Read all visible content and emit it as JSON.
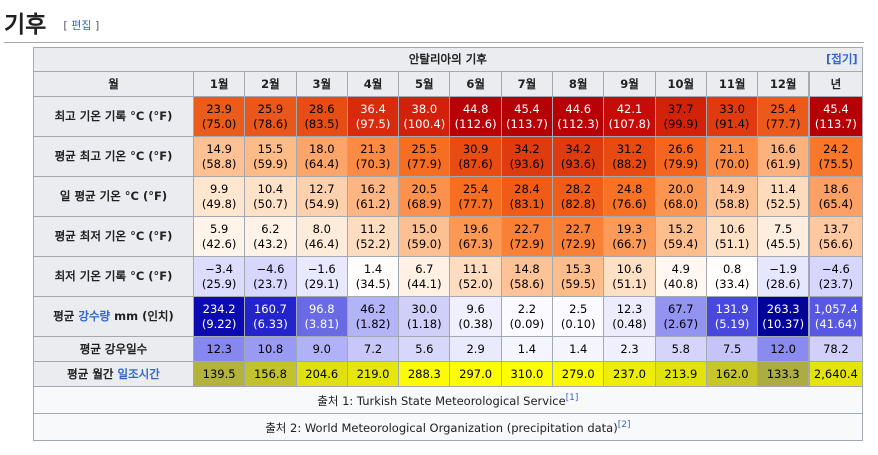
{
  "section": {
    "title": "기후",
    "edit_open": "[ ",
    "edit_label": "편집",
    "edit_close": " ]"
  },
  "table": {
    "caption": "안탈리아의 기후",
    "collapse_label": "[접기]",
    "header": {
      "label": "월",
      "months": [
        "1월",
        "2월",
        "3월",
        "4월",
        "5월",
        "6월",
        "7월",
        "8월",
        "9월",
        "10월",
        "11월",
        "12월"
      ],
      "year": "년"
    },
    "rows": [
      {
        "label": "최고 기온 기록 °C (°F)",
        "cells": [
          {
            "v": "23.9",
            "f": "(75.0)",
            "bg": "#e95c1b",
            "fg": "#000000"
          },
          {
            "v": "25.9",
            "f": "(78.6)",
            "bg": "#ea571a",
            "fg": "#000000"
          },
          {
            "v": "28.6",
            "f": "(83.5)",
            "bg": "#e64e15",
            "fg": "#000000"
          },
          {
            "v": "36.4",
            "f": "(97.5)",
            "bg": "#d82a0c",
            "fg": "#ffffff"
          },
          {
            "v": "38.0",
            "f": "(100.4)",
            "bg": "#d2200a",
            "fg": "#ffffff"
          },
          {
            "v": "44.8",
            "f": "(112.6)",
            "bg": "#b80006",
            "fg": "#ffffff"
          },
          {
            "v": "45.4",
            "f": "(113.7)",
            "bg": "#b50006",
            "fg": "#ffffff"
          },
          {
            "v": "44.6",
            "f": "(112.3)",
            "bg": "#b90006",
            "fg": "#ffffff"
          },
          {
            "v": "42.1",
            "f": "(107.8)",
            "bg": "#c70b08",
            "fg": "#ffffff"
          },
          {
            "v": "37.7",
            "f": "(99.9)",
            "bg": "#d3220a",
            "fg": "#000000"
          },
          {
            "v": "33.0",
            "f": "(91.4)",
            "bg": "#e03a10",
            "fg": "#000000"
          },
          {
            "v": "25.4",
            "f": "(77.7)",
            "bg": "#eb5a1b",
            "fg": "#000000"
          },
          {
            "v": "45.4",
            "f": "(113.7)",
            "bg": "#b50006",
            "fg": "#ffffff"
          }
        ]
      },
      {
        "label": "평균 최고 기온 °C (°F)",
        "cells": [
          {
            "v": "14.9",
            "f": "(58.8)",
            "bg": "#fdc193",
            "fg": "#000000"
          },
          {
            "v": "15.5",
            "f": "(59.9)",
            "bg": "#fdbb88",
            "fg": "#000000"
          },
          {
            "v": "18.0",
            "f": "(64.4)",
            "bg": "#fca56a",
            "fg": "#000000"
          },
          {
            "v": "21.3",
            "f": "(70.3)",
            "bg": "#fb8a44",
            "fg": "#000000"
          },
          {
            "v": "25.5",
            "f": "(77.9)",
            "bg": "#f66e21",
            "fg": "#000000"
          },
          {
            "v": "30.9",
            "f": "(87.6)",
            "bg": "#e84c12",
            "fg": "#000000"
          },
          {
            "v": "34.2",
            "f": "(93.6)",
            "bg": "#de3b0e",
            "fg": "#000000"
          },
          {
            "v": "34.2",
            "f": "(93.6)",
            "bg": "#de3b0e",
            "fg": "#000000"
          },
          {
            "v": "31.2",
            "f": "(88.2)",
            "bg": "#e74b12",
            "fg": "#000000"
          },
          {
            "v": "26.6",
            "f": "(79.9)",
            "bg": "#f4661d",
            "fg": "#000000"
          },
          {
            "v": "21.1",
            "f": "(70.0)",
            "bg": "#fb8c46",
            "fg": "#000000"
          },
          {
            "v": "16.6",
            "f": "(61.9)",
            "bg": "#fdb27d",
            "fg": "#000000"
          },
          {
            "v": "24.2",
            "f": "(75.5)",
            "bg": "#f8772a",
            "fg": "#000000"
          }
        ]
      },
      {
        "label": "일 평균 기온 °C (°F)",
        "cells": [
          {
            "v": "9.9",
            "f": "(49.8)",
            "bg": "#fee6cf",
            "fg": "#000000"
          },
          {
            "v": "10.4",
            "f": "(50.7)",
            "bg": "#fee2c8",
            "fg": "#000000"
          },
          {
            "v": "12.7",
            "f": "(54.9)",
            "bg": "#fed1ae",
            "fg": "#000000"
          },
          {
            "v": "16.2",
            "f": "(61.2)",
            "bg": "#fdb583",
            "fg": "#000000"
          },
          {
            "v": "20.5",
            "f": "(68.9)",
            "bg": "#fb914c",
            "fg": "#000000"
          },
          {
            "v": "25.4",
            "f": "(77.7)",
            "bg": "#f66e21",
            "fg": "#000000"
          },
          {
            "v": "28.4",
            "f": "(83.1)",
            "bg": "#ef5c18",
            "fg": "#000000"
          },
          {
            "v": "28.2",
            "f": "(82.8)",
            "bg": "#ef5d18",
            "fg": "#000000"
          },
          {
            "v": "24.8",
            "f": "(76.6)",
            "bg": "#f77225",
            "fg": "#000000"
          },
          {
            "v": "20.0",
            "f": "(68.0)",
            "bg": "#fb9551",
            "fg": "#000000"
          },
          {
            "v": "14.9",
            "f": "(58.8)",
            "bg": "#fdc193",
            "fg": "#000000"
          },
          {
            "v": "11.4",
            "f": "(52.5)",
            "bg": "#fedbbd",
            "fg": "#000000"
          },
          {
            "v": "18.6",
            "f": "(65.4)",
            "bg": "#fca066",
            "fg": "#000000"
          }
        ]
      },
      {
        "label": "평균 최저 기온 °C (°F)",
        "cells": [
          {
            "v": "5.9",
            "f": "(42.6)",
            "bg": "#fff4ea",
            "fg": "#000000"
          },
          {
            "v": "6.2",
            "f": "(43.2)",
            "bg": "#fff3e8",
            "fg": "#000000"
          },
          {
            "v": "8.0",
            "f": "(46.4)",
            "bg": "#feecdb",
            "fg": "#000000"
          },
          {
            "v": "11.2",
            "f": "(52.2)",
            "bg": "#fedcbf",
            "fg": "#000000"
          },
          {
            "v": "15.0",
            "f": "(59.0)",
            "bg": "#fdc092",
            "fg": "#000000"
          },
          {
            "v": "19.6",
            "f": "(67.3)",
            "bg": "#fb9854",
            "fg": "#000000"
          },
          {
            "v": "22.7",
            "f": "(72.9)",
            "bg": "#f98037",
            "fg": "#000000"
          },
          {
            "v": "22.7",
            "f": "(72.9)",
            "bg": "#f98037",
            "fg": "#000000"
          },
          {
            "v": "19.3",
            "f": "(66.7)",
            "bg": "#fc9b59",
            "fg": "#000000"
          },
          {
            "v": "15.2",
            "f": "(59.4)",
            "bg": "#fdbe8e",
            "fg": "#000000"
          },
          {
            "v": "10.6",
            "f": "(51.1)",
            "bg": "#fee0c5",
            "fg": "#000000"
          },
          {
            "v": "7.5",
            "f": "(45.5)",
            "bg": "#feeedf",
            "fg": "#000000"
          },
          {
            "v": "13.7",
            "f": "(56.6)",
            "bg": "#fec9a1",
            "fg": "#000000"
          }
        ]
      },
      {
        "label": "최저 기온 기록 °C (°F)",
        "cells": [
          {
            "v": "−3.4",
            "f": "(25.9)",
            "bg": "#dcdcff",
            "fg": "#000000"
          },
          {
            "v": "−4.6",
            "f": "(23.7)",
            "bg": "#d6d6ff",
            "fg": "#000000"
          },
          {
            "v": "−1.6",
            "f": "(29.1)",
            "bg": "#e8e8ff",
            "fg": "#000000"
          },
          {
            "v": "1.4",
            "f": "(34.5)",
            "bg": "#fffdfb",
            "fg": "#000000"
          },
          {
            "v": "6.7",
            "f": "(44.1)",
            "bg": "#fff1e4",
            "fg": "#000000"
          },
          {
            "v": "11.1",
            "f": "(52.0)",
            "bg": "#fedcc0",
            "fg": "#000000"
          },
          {
            "v": "14.8",
            "f": "(58.6)",
            "bg": "#fdc295",
            "fg": "#000000"
          },
          {
            "v": "15.3",
            "f": "(59.5)",
            "bg": "#fdbd8b",
            "fg": "#000000"
          },
          {
            "v": "10.6",
            "f": "(51.1)",
            "bg": "#fee0c5",
            "fg": "#000000"
          },
          {
            "v": "4.9",
            "f": "(40.8)",
            "bg": "#fff7f0",
            "fg": "#000000"
          },
          {
            "v": "0.8",
            "f": "(33.4)",
            "bg": "#fffefd",
            "fg": "#000000"
          },
          {
            "v": "−1.9",
            "f": "(28.6)",
            "bg": "#e6e6ff",
            "fg": "#000000"
          },
          {
            "v": "−4.6",
            "f": "(23.7)",
            "bg": "#d6d6ff",
            "fg": "#000000"
          }
        ]
      },
      {
        "label_pre": "평균 ",
        "label_link": "강수량",
        "label_post": " mm (인치)",
        "cells": [
          {
            "v": "234.2",
            "f": "(9.22)",
            "bg": "#0b0bb0",
            "fg": "#ffffff"
          },
          {
            "v": "160.7",
            "f": "(6.33)",
            "bg": "#2424cc",
            "fg": "#ffffff"
          },
          {
            "v": "96.8",
            "f": "(3.81)",
            "bg": "#6a6ae5",
            "fg": "#ffffff"
          },
          {
            "v": "46.2",
            "f": "(1.82)",
            "bg": "#b3b3f7",
            "fg": "#000000"
          },
          {
            "v": "30.0",
            "f": "(1.18)",
            "bg": "#cfcffa",
            "fg": "#000000"
          },
          {
            "v": "9.6",
            "f": "(0.38)",
            "bg": "#efeffd",
            "fg": "#000000"
          },
          {
            "v": "2.2",
            "f": "(0.09)",
            "bg": "#fbfbff",
            "fg": "#000000"
          },
          {
            "v": "2.5",
            "f": "(0.10)",
            "bg": "#fbfbff",
            "fg": "#000000"
          },
          {
            "v": "12.3",
            "f": "(0.48)",
            "bg": "#ececfd",
            "fg": "#000000"
          },
          {
            "v": "67.7",
            "f": "(2.67)",
            "bg": "#9393f2",
            "fg": "#000000"
          },
          {
            "v": "131.9",
            "f": "(5.19)",
            "bg": "#4848dc",
            "fg": "#ffffff"
          },
          {
            "v": "263.3",
            "f": "(10.37)",
            "bg": "#030398",
            "fg": "#ffffff"
          },
          {
            "v": "1,057.4",
            "f": "(41.64)",
            "bg": "#5858e2",
            "fg": "#ffffff"
          }
        ]
      },
      {
        "label": "평균 강우일수",
        "cells": [
          {
            "v": "12.3",
            "bg": "#8787f0",
            "fg": "#000000"
          },
          {
            "v": "10.8",
            "bg": "#9a9af3",
            "fg": "#000000"
          },
          {
            "v": "9.0",
            "bg": "#b1b1f7",
            "fg": "#000000"
          },
          {
            "v": "7.2",
            "bg": "#c7c7f9",
            "fg": "#000000"
          },
          {
            "v": "5.6",
            "bg": "#d7d7fb",
            "fg": "#000000"
          },
          {
            "v": "2.9",
            "bg": "#eaeafd",
            "fg": "#000000"
          },
          {
            "v": "1.4",
            "bg": "#f5f5fe",
            "fg": "#000000"
          },
          {
            "v": "1.4",
            "bg": "#f5f5fe",
            "fg": "#000000"
          },
          {
            "v": "2.3",
            "bg": "#efeffe",
            "fg": "#000000"
          },
          {
            "v": "5.8",
            "bg": "#d5d5fb",
            "fg": "#000000"
          },
          {
            "v": "7.5",
            "bg": "#c4c4f9",
            "fg": "#000000"
          },
          {
            "v": "12.0",
            "bg": "#8a8af0",
            "fg": "#000000"
          },
          {
            "v": "78.2",
            "bg": "#d0d0fa",
            "fg": "#000000"
          }
        ]
      },
      {
        "label_pre": "평균 월간 ",
        "label_link": "일조시간",
        "label_post": "",
        "cells": [
          {
            "v": "139.5",
            "bg": "#b3b33c",
            "fg": "#000000"
          },
          {
            "v": "156.8",
            "bg": "#c2c22c",
            "fg": "#000000"
          },
          {
            "v": "204.6",
            "bg": "#e0e010",
            "fg": "#000000"
          },
          {
            "v": "219.0",
            "bg": "#e6e60a",
            "fg": "#000000"
          },
          {
            "v": "288.3",
            "bg": "#fbfb02",
            "fg": "#000000"
          },
          {
            "v": "297.0",
            "bg": "#fcfc03",
            "fg": "#000000"
          },
          {
            "v": "310.0",
            "bg": "#fdfd06",
            "fg": "#000000"
          },
          {
            "v": "279.0",
            "bg": "#f9f903",
            "fg": "#000000"
          },
          {
            "v": "237.0",
            "bg": "#eded05",
            "fg": "#000000"
          },
          {
            "v": "213.9",
            "bg": "#e3e30c",
            "fg": "#000000"
          },
          {
            "v": "162.0",
            "bg": "#c6c628",
            "fg": "#000000"
          },
          {
            "v": "133.3",
            "bg": "#acac42",
            "fg": "#000000"
          },
          {
            "v": "2,640.4",
            "bg": "#e4e40b",
            "fg": "#000000"
          }
        ]
      }
    ],
    "sources": [
      {
        "text": "출처 1: Turkish State Meteorological Service",
        "ref": "[1]"
      },
      {
        "text": "출처 2: World Meteorological Organization (precipitation data)",
        "ref": "[2]"
      }
    ]
  }
}
